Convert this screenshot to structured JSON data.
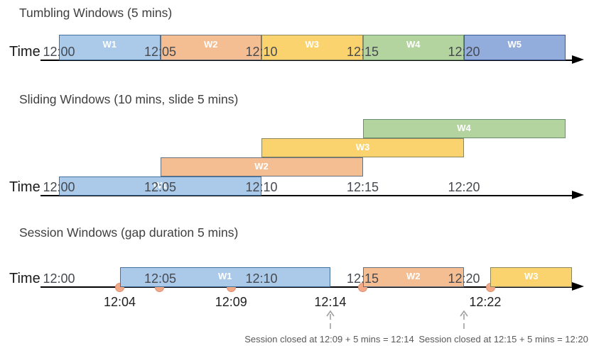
{
  "palette": {
    "blue": {
      "fill": "#ABCAE9",
      "border": "#41719C"
    },
    "blue2": {
      "fill": "#92ACDB",
      "border": "#3B5898"
    },
    "orange": {
      "fill": "#F5BE92",
      "border": "#66707E"
    },
    "yellow": {
      "fill": "#FBD36E",
      "border": "#8A8660"
    },
    "green": {
      "fill": "#B3D39F",
      "border": "#6B9070"
    },
    "event_dot": {
      "fill": "#F2A988",
      "border": "#DD9070"
    },
    "axis": "#000000",
    "dashed_arrow": "#A0A0A0"
  },
  "sections": [
    {
      "id": "tumbling",
      "title": "Tumbling Windows (5 mins)",
      "time_label": "Time",
      "ticks": [
        {
          "at_min": 0,
          "label": "12:00"
        },
        {
          "at_min": 5,
          "label": "12:05"
        },
        {
          "at_min": 10,
          "label": "12:10"
        },
        {
          "at_min": 15,
          "label": "12:15"
        },
        {
          "at_min": 20,
          "label": "12:20"
        }
      ],
      "windows": [
        {
          "name": "W1",
          "start_min": 0,
          "end_min": 5,
          "color": "blue",
          "row": 0
        },
        {
          "name": "W2",
          "start_min": 5,
          "end_min": 10,
          "color": "orange",
          "row": 0
        },
        {
          "name": "W3",
          "start_min": 10,
          "end_min": 15,
          "color": "yellow",
          "row": 0
        },
        {
          "name": "W4",
          "start_min": 15,
          "end_min": 20,
          "color": "green",
          "row": 0
        },
        {
          "name": "W5",
          "start_min": 20,
          "end_min": 25,
          "color": "blue2",
          "row": 0
        }
      ]
    },
    {
      "id": "sliding",
      "title": "Sliding Windows (10 mins, slide 5 mins)",
      "time_label": "Time",
      "ticks": [
        {
          "at_min": 0,
          "label": "12:00"
        },
        {
          "at_min": 5,
          "label": "12:05"
        },
        {
          "at_min": 10,
          "label": "12:10"
        },
        {
          "at_min": 15,
          "label": "12:15"
        },
        {
          "at_min": 20,
          "label": "12:20"
        }
      ],
      "windows": [
        {
          "name": "W1",
          "start_min": 0,
          "end_min": 10,
          "color": "blue",
          "row": 0
        },
        {
          "name": "W2",
          "start_min": 5,
          "end_min": 15,
          "color": "orange",
          "row": 1
        },
        {
          "name": "W3",
          "start_min": 10,
          "end_min": 20,
          "color": "yellow",
          "row": 2
        },
        {
          "name": "W4",
          "start_min": 15,
          "end_min": 25,
          "color": "green",
          "row": 3
        }
      ]
    },
    {
      "id": "session",
      "title": "Session Windows (gap duration 5 mins)",
      "time_label": "Time",
      "ticks": [
        {
          "at_min": 0,
          "label": "12:00"
        },
        {
          "at_min": 5,
          "label": "12:05"
        },
        {
          "at_min": 10,
          "label": "12:10"
        },
        {
          "at_min": 15,
          "label": "12:15"
        },
        {
          "at_min": 20,
          "label": "12:20"
        }
      ],
      "windows": [
        {
          "name": "W1",
          "start_min": 3,
          "end_min": 13.4,
          "color": "blue",
          "row": 0
        },
        {
          "name": "W2",
          "start_min": 15,
          "end_min": 20,
          "color": "orange",
          "row": 0
        },
        {
          "name": "W3",
          "start_min": 21.3,
          "end_min": 25.35,
          "color": "yellow",
          "row": 0
        }
      ],
      "events": [
        {
          "at_min": 3
        },
        {
          "at_min": 4.95
        },
        {
          "at_min": 8.5
        },
        {
          "at_min": 15
        },
        {
          "at_min": 21.3
        }
      ],
      "below_labels": [
        {
          "at_min": 3,
          "label": "12:04"
        },
        {
          "at_min": 8.5,
          "label": "12:09"
        },
        {
          "at_min": 13.4,
          "label": "12:14"
        },
        {
          "at_min": 21.05,
          "label": "12:22"
        }
      ],
      "annotations": [
        {
          "arrow_at_min": 13.4,
          "text_center_min": 13.35,
          "text": "Session closed at 12:09 + 5 mins = 12:14"
        },
        {
          "arrow_at_min": 20,
          "text_center_min": 21.95,
          "text": "Session closed at 12:15 + 5 mins = 12:20"
        }
      ]
    }
  ]
}
